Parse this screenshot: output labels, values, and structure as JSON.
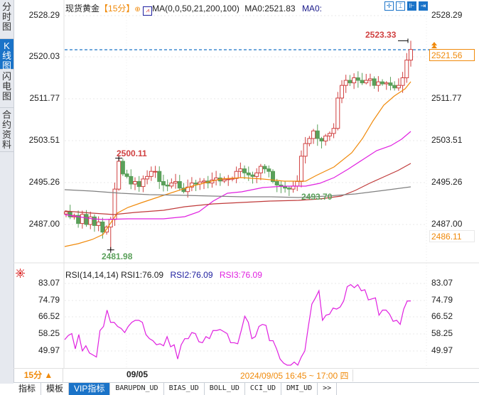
{
  "sidebar": {
    "tabs": [
      {
        "label": "分时图",
        "active": false
      },
      {
        "label": "K线图",
        "active": true
      },
      {
        "label": "闪电图",
        "active": false
      },
      {
        "label": "合约资料",
        "active": false
      }
    ]
  },
  "header": {
    "instrument": "现货黄金",
    "period": "【15分】",
    "indicator": "MA(0,0,50,21,200,100)",
    "ma0_value": "MA0:2521.83",
    "ma0_label": "MA0:",
    "tools": [
      "crosshair-icon",
      "range-icon",
      "select-icon",
      "move-right-icon"
    ]
  },
  "price_axis": {
    "ticks": [
      "2528.29",
      "2520.03",
      "2511.77",
      "2503.51",
      "2495.26",
      "2487.00"
    ],
    "current_price": "2521.56",
    "low_marker": "2486.11"
  },
  "annotations": {
    "high1": "2500.11",
    "low1": "2481.98",
    "low2": "2493.70",
    "high2": "2523.33"
  },
  "rsi": {
    "legend": "RSI(14,14,14)",
    "rsi1": "RSI1:76.09",
    "rsi2": "RSI2:76.09",
    "rsi3": "RSI3:76.09",
    "ticks": [
      "83.07",
      "74.79",
      "66.52",
      "58.25",
      "49.97"
    ]
  },
  "footer": {
    "period_button": "15分 ▲",
    "date": "09/05",
    "time_range": "2024/09/05 16:45 ~ 17:00 四"
  },
  "tabs": [
    "指标",
    "模板",
    "VIP指标",
    "BARUPDN_UD",
    "BIAS_UD",
    "BOLL_UD",
    "CCI_UD",
    "DMI_UD",
    ">>"
  ],
  "colors": {
    "up": "#d04040",
    "down": "#5aa05a",
    "ma21": "#f08a0b",
    "ma50": "#e020e0",
    "ma100": "#c03a3a",
    "ma200": "#808080",
    "rsi": "#e020e0",
    "accent": "#1a73c8"
  },
  "chart_data": [
    {
      "type": "candlestick",
      "title": "现货黄金 15分 MA(0,0,50,21,200,100)",
      "ylim": [
        2481.0,
        2529.5
      ],
      "yticks": [
        2528.29,
        2520.03,
        2511.77,
        2503.51,
        2495.26,
        2487.0
      ],
      "current_price": 2521.56,
      "ma0": 2521.83,
      "annotations": [
        {
          "label": "2500.11",
          "type": "high"
        },
        {
          "label": "2481.98",
          "type": "low"
        },
        {
          "label": "2493.70",
          "type": "low"
        },
        {
          "label": "2523.33",
          "type": "high"
        }
      ],
      "closes": [
        2489.5,
        2488.5,
        2488.8,
        2487.2,
        2489.0,
        2487.0,
        2488.5,
        2486.8,
        2487.5,
        2485.5,
        2486.5,
        2488.0,
        2494.0,
        2499.5,
        2497.0,
        2496.5,
        2495.0,
        2495.5,
        2494.5,
        2496.0,
        2496.5,
        2497.5,
        2497.5,
        2495.5,
        2494.8,
        2494.6,
        2495.2,
        2495.5,
        2494.2,
        2493.5,
        2494.4,
        2495.2,
        2495.0,
        2495.4,
        2495.6,
        2495.2,
        2495.8,
        2496.2,
        2495.6,
        2495.9,
        2496.0,
        2496.1,
        2497.5,
        2498.0,
        2497.2,
        2496.8,
        2496.5,
        2497.2,
        2498.5,
        2498.0,
        2497.5,
        2495.5,
        2494.8,
        2494.5,
        2494.2,
        2494.0,
        2494.6,
        2495.5,
        2500.5,
        2503.0,
        2504.0,
        2505.5,
        2504.0,
        2503.5,
        2504.5,
        2505.0,
        2506.0,
        2512.0,
        2514.5,
        2515.5,
        2515.0,
        2516.0,
        2515.5,
        2515.0,
        2515.5,
        2515.8,
        2514.5,
        2515.2,
        2514.8,
        2515.0,
        2514.5,
        2514.0,
        2514.5,
        2516.0,
        2519.5,
        2521.6
      ],
      "series": [
        {
          "name": "MA21",
          "color": "#f08a0b"
        },
        {
          "name": "MA50",
          "color": "#e020e0"
        },
        {
          "name": "MA100",
          "color": "#c03a3a"
        },
        {
          "name": "MA200",
          "color": "#808080"
        }
      ]
    },
    {
      "type": "line",
      "title": "RSI(14,14,14)",
      "ylim": [
        44,
        86
      ],
      "yticks": [
        83.07,
        74.79,
        66.52,
        58.25,
        49.97
      ],
      "series": [
        {
          "name": "RSI1",
          "values": [
            55.5,
            57.5,
            58.5,
            51,
            58,
            50,
            52.5,
            49,
            48,
            47,
            60,
            62,
            70,
            64,
            64,
            62,
            61,
            59,
            62,
            64,
            65,
            65,
            64,
            58,
            56,
            55,
            53,
            53.5,
            52.5,
            57,
            52,
            53,
            46,
            53,
            56,
            56,
            59,
            58.5,
            54.5,
            54,
            57,
            56,
            60,
            60,
            60.5,
            59.5,
            58.5,
            54,
            54,
            53.5,
            60,
            67,
            64,
            56,
            57,
            62,
            63,
            62.5,
            55,
            55,
            51,
            46,
            44,
            43,
            43,
            44.5,
            43,
            47,
            50,
            62,
            73,
            76,
            79.5,
            65,
            67.5,
            68,
            71,
            70.5,
            71.5,
            74.5,
            81.5,
            82.5,
            81,
            82.5,
            79.5,
            80,
            75,
            75.5,
            76,
            67.5,
            70,
            70,
            68,
            64.5,
            65,
            63,
            70.5,
            74.5,
            74.5
          ]
        }
      ]
    }
  ]
}
